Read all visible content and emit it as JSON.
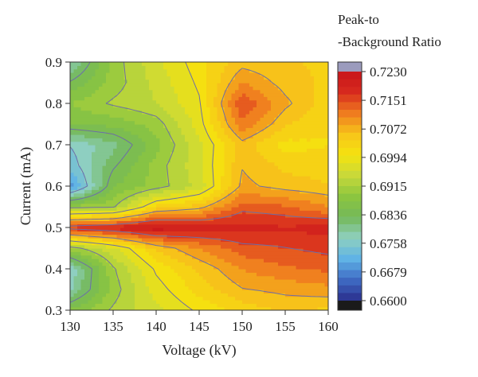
{
  "chart_data": {
    "type": "heatmap",
    "subtype": "filled-contour",
    "xlabel": "Voltage (kV)",
    "ylabel": "Current (mA)",
    "colorbar_title": [
      "Peak-to",
      "-Background Ratio"
    ],
    "xlim": [
      130,
      160
    ],
    "ylim": [
      0.3,
      0.9
    ],
    "x_ticks": [
      130,
      135,
      140,
      145,
      150,
      155,
      160
    ],
    "y_ticks": [
      0.3,
      0.4,
      0.5,
      0.6,
      0.7,
      0.8,
      0.9
    ],
    "x_tick_labels": [
      "130",
      "135",
      "140",
      "145",
      "150",
      "155",
      "160"
    ],
    "y_tick_labels": [
      "0.3",
      "0.4",
      "0.5",
      "0.6",
      "0.7",
      "0.8",
      "0.9"
    ],
    "colorbar_ticks": [
      0.723,
      0.7151,
      0.7072,
      0.6994,
      0.6915,
      0.6836,
      0.6758,
      0.6679,
      0.66
    ],
    "colorbar_tick_labels": [
      "0.7230",
      "0.7151",
      "0.7072",
      "0.6994",
      "0.6915",
      "0.6836",
      "0.6758",
      "0.6679",
      "0.6600"
    ],
    "zlim": [
      0.66,
      0.723
    ],
    "colormap": [
      "#2a2e8c",
      "#3f6bc4",
      "#5fb3e6",
      "#8fd0c0",
      "#74b85a",
      "#8cc63f",
      "#c8d93a",
      "#f5e30f",
      "#f7c41a",
      "#ef7b1f",
      "#d72a1e",
      "#c8141a"
    ],
    "grid_x": [
      130,
      135,
      140,
      145,
      150,
      155,
      160
    ],
    "grid_y": [
      0.3,
      0.35,
      0.4,
      0.45,
      0.5,
      0.55,
      0.6,
      0.65,
      0.7,
      0.75,
      0.8,
      0.85,
      0.9
    ],
    "z": [
      [
        0.687,
        0.692,
        0.696,
        0.7,
        0.703,
        0.705,
        0.704
      ],
      [
        0.678,
        0.69,
        0.698,
        0.703,
        0.707,
        0.708,
        0.709
      ],
      [
        0.676,
        0.691,
        0.7,
        0.705,
        0.71,
        0.712,
        0.713
      ],
      [
        0.69,
        0.696,
        0.705,
        0.71,
        0.714,
        0.715,
        0.716
      ],
      [
        0.717,
        0.719,
        0.722,
        0.72,
        0.719,
        0.718,
        0.719
      ],
      [
        0.69,
        0.691,
        0.703,
        0.706,
        0.714,
        0.713,
        0.71
      ],
      [
        0.669,
        0.686,
        0.69,
        0.695,
        0.708,
        0.706,
        0.705
      ],
      [
        0.674,
        0.683,
        0.69,
        0.696,
        0.707,
        0.704,
        0.703
      ],
      [
        0.676,
        0.68,
        0.688,
        0.696,
        0.706,
        0.701,
        0.702
      ],
      [
        0.686,
        0.687,
        0.69,
        0.698,
        0.712,
        0.705,
        0.702
      ],
      [
        0.689,
        0.692,
        0.694,
        0.699,
        0.715,
        0.708,
        0.703
      ],
      [
        0.684,
        0.69,
        0.695,
        0.7,
        0.71,
        0.706,
        0.704
      ],
      [
        0.678,
        0.69,
        0.696,
        0.701,
        0.706,
        0.705,
        0.704
      ]
    ],
    "contour_line_color": "#6d6ea6",
    "grid": false
  }
}
